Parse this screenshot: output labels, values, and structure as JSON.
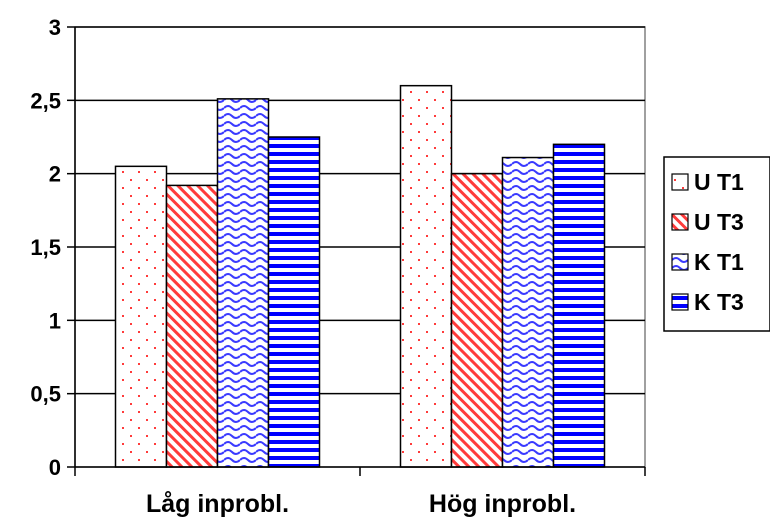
{
  "chart_data": {
    "type": "bar",
    "categories": [
      "Låg inprobl.",
      "Hög inprobl."
    ],
    "series": [
      {
        "name": "U T1",
        "values": [
          2.05,
          2.6
        ],
        "color": "#ff3b3b",
        "pattern": "dots"
      },
      {
        "name": "U T3",
        "values": [
          1.92,
          2.0
        ],
        "color": "#ff3b3b",
        "pattern": "diagonal-stripes"
      },
      {
        "name": "K T1",
        "values": [
          2.51,
          2.11
        ],
        "color": "#3a3aff",
        "pattern": "waves"
      },
      {
        "name": "K T3",
        "values": [
          2.25,
          2.2
        ],
        "color": "#0000ff",
        "pattern": "horizontal-stripes"
      }
    ],
    "yticks": [
      "0",
      "0,5",
      "1",
      "1,5",
      "2",
      "2,5",
      "3"
    ],
    "ylim": [
      0,
      3
    ],
    "grid": true,
    "legend_position": "right"
  }
}
